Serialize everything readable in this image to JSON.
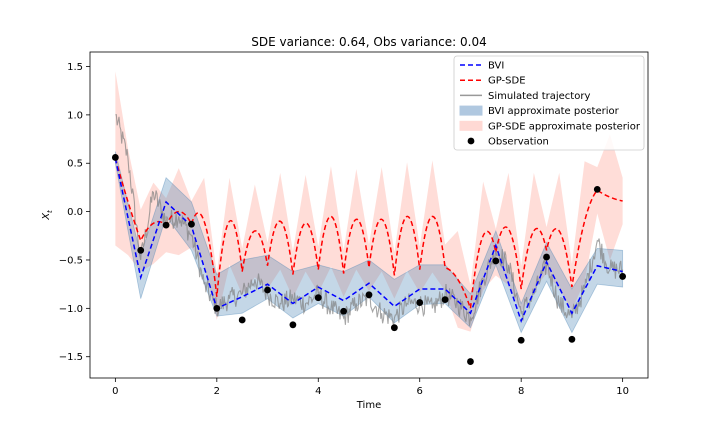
{
  "chart_data": {
    "type": "line",
    "title": "SDE variance: 0.64, Obs variance: 0.04",
    "xlabel": "Time",
    "ylabel": "X",
    "ylabel_sub": "t",
    "xlim": [
      -0.5,
      10.5
    ],
    "ylim": [
      -1.72,
      1.65
    ],
    "x_ticks": [
      0,
      2,
      4,
      6,
      8,
      10
    ],
    "x_tick_labels": [
      "0",
      "2",
      "4",
      "6",
      "8",
      "10"
    ],
    "y_ticks": [
      -1.5,
      -1.0,
      -0.5,
      0.0,
      0.5,
      1.0,
      1.5
    ],
    "y_tick_labels": [
      "−1.5",
      "−1.0",
      "−0.5",
      "0.0",
      "0.5",
      "1.0",
      "1.5"
    ],
    "grid": false,
    "legend_position": "top-right",
    "legend": [
      {
        "label": "BVI",
        "kind": "dashed-line",
        "color": "#0000ff"
      },
      {
        "label": "GP-SDE",
        "kind": "dashed-line",
        "color": "#ff0000"
      },
      {
        "label": "Simulated trajectory",
        "kind": "line",
        "color": "#999999"
      },
      {
        "label": "BVI approximate posterior",
        "kind": "patch",
        "color": "#b0c8e0"
      },
      {
        "label": "GP-SDE approximate posterior",
        "kind": "patch",
        "color": "#ffd9d4"
      },
      {
        "label": "Observation",
        "kind": "marker",
        "color": "#000000"
      }
    ],
    "colors": {
      "bvi": "#0000ff",
      "gpsde": "#ff0000",
      "trajectory": "#808080",
      "bvi_band": "#4682b4",
      "gpsde_band": "#ff9e90",
      "observation": "#000000"
    },
    "observations": {
      "x": [
        0,
        0.5,
        1,
        1.5,
        2,
        2.5,
        3,
        3.5,
        4,
        4.5,
        5,
        5.5,
        6,
        6.5,
        7,
        7.5,
        8,
        8.5,
        9,
        9.5,
        10
      ],
      "y": [
        0.56,
        -0.4,
        -0.14,
        -0.13,
        -1.0,
        -1.12,
        -0.81,
        -1.17,
        -0.89,
        -1.03,
        -0.86,
        -1.2,
        -0.94,
        -0.91,
        -1.55,
        -0.51,
        -1.33,
        -0.47,
        -1.32,
        0.23,
        -0.67
      ]
    },
    "bvi": {
      "x": [
        0,
        0.5,
        1,
        1.5,
        2,
        2.5,
        3,
        3.5,
        4,
        4.5,
        5,
        5.5,
        6,
        6.5,
        7,
        7.5,
        8,
        8.5,
        9,
        9.5,
        10
      ],
      "y": [
        0.55,
        -0.68,
        0.1,
        -0.15,
        -1.0,
        -0.88,
        -0.75,
        -0.95,
        -0.78,
        -0.92,
        -0.74,
        -0.98,
        -0.8,
        -0.8,
        -1.05,
        -0.35,
        -1.13,
        -0.52,
        -1.05,
        -0.56,
        -0.62
      ],
      "lower": [
        0.5,
        -0.9,
        -0.05,
        -0.4,
        -1.08,
        -1.05,
        -0.9,
        -1.1,
        -0.95,
        -1.08,
        -0.88,
        -1.15,
        -0.96,
        -0.95,
        -1.2,
        -0.55,
        -1.25,
        -0.72,
        -1.25,
        -0.75,
        -0.78
      ],
      "upper": [
        0.62,
        -0.45,
        0.35,
        0.1,
        -0.65,
        -0.5,
        -0.45,
        -0.62,
        -0.55,
        -0.62,
        -0.5,
        -0.7,
        -0.55,
        -0.55,
        -0.85,
        -0.2,
        -0.95,
        -0.32,
        -0.8,
        -0.38,
        -0.4
      ]
    },
    "gpsde": {
      "x": [
        0,
        0.5,
        1,
        1.5,
        2,
        2.5,
        3,
        3.5,
        4,
        4.5,
        5,
        5.5,
        6,
        6.5,
        7,
        7.5,
        8,
        8.5,
        9,
        9.5,
        10
      ],
      "y": [
        0.55,
        -0.3,
        -0.14,
        -0.13,
        -0.88,
        -0.62,
        -0.56,
        -0.65,
        -0.6,
        -0.64,
        -0.58,
        -0.66,
        -0.6,
        -0.58,
        -1.0,
        -0.42,
        -0.8,
        -0.4,
        -0.78,
        0.22,
        0.11
      ],
      "mid_y": [
        0.1,
        -0.12,
        0.0,
        -0.1,
        -0.1,
        -0.2,
        -0.1,
        -0.12,
        -0.05,
        -0.08,
        -0.08,
        -0.05,
        -0.05,
        -0.7,
        -0.25,
        -0.18,
        -0.2,
        -0.2,
        -0.1,
        0.15
      ],
      "band_halfwidth_at_obs": [
        0.9,
        0.32,
        0.28,
        0.24,
        0.24,
        0.24,
        0.24,
        0.24,
        0.24,
        0.24,
        0.24,
        0.24,
        0.24,
        0.24,
        0.24,
        0.24,
        0.24,
        0.24,
        0.24,
        0.24,
        0.24
      ],
      "band_halfwidth_mid": [
        0.55,
        0.42,
        0.45,
        0.45,
        0.45,
        0.48,
        0.5,
        0.5,
        0.52,
        0.52,
        0.54,
        0.56,
        0.58,
        0.5,
        0.56,
        0.58,
        0.6,
        0.6,
        0.62,
        0.65
      ]
    },
    "trajectory": {
      "x": [
        0,
        0.25,
        0.5,
        0.75,
        1,
        1.25,
        1.5,
        1.75,
        2,
        2.25,
        2.5,
        2.75,
        3,
        3.25,
        3.5,
        3.75,
        4,
        4.25,
        4.5,
        4.75,
        5,
        5.25,
        5.5,
        5.75,
        6,
        6.25,
        6.5,
        6.75,
        7,
        7.25,
        7.5,
        7.75,
        8,
        8.25,
        8.5,
        8.75,
        9,
        9.25,
        9.5,
        9.75,
        10
      ],
      "y": [
        1.0,
        0.55,
        -0.5,
        0.2,
        -0.1,
        -0.05,
        -0.25,
        -0.75,
        -1.0,
        -0.9,
        -0.85,
        -0.7,
        -0.85,
        -0.95,
        -0.9,
        -0.95,
        -0.85,
        -1.0,
        -1.1,
        -0.95,
        -0.9,
        -1.05,
        -1.1,
        -0.95,
        -0.95,
        -1.0,
        -0.85,
        -0.95,
        -1.1,
        -0.7,
        -0.4,
        -0.55,
        -1.05,
        -0.85,
        -0.55,
        -0.95,
        -1.1,
        -0.8,
        -0.3,
        -0.6,
        -0.6
      ]
    }
  }
}
